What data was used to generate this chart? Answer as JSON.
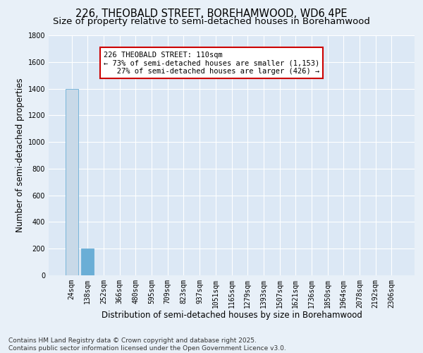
{
  "title_line1": "226, THEOBALD STREET, BOREHAMWOOD, WD6 4PE",
  "title_line2": "Size of property relative to semi-detached houses in Borehamwood",
  "xlabel": "Distribution of semi-detached houses by size in Borehamwood",
  "ylabel": "Number of semi-detached properties",
  "categories": [
    "24sqm",
    "138sqm",
    "252sqm",
    "366sqm",
    "480sqm",
    "595sqm",
    "709sqm",
    "823sqm",
    "937sqm",
    "1051sqm",
    "1165sqm",
    "1279sqm",
    "1393sqm",
    "1507sqm",
    "1621sqm",
    "1736sqm",
    "1850sqm",
    "1964sqm",
    "2078sqm",
    "2192sqm",
    "2306sqm"
  ],
  "values": [
    1400,
    200,
    0,
    0,
    0,
    0,
    0,
    0,
    0,
    0,
    0,
    0,
    0,
    0,
    0,
    0,
    0,
    0,
    0,
    0,
    0
  ],
  "highlight_bar_index": 1,
  "bar_color_normal": "#c8d9e8",
  "bar_color_highlight": "#6aaed6",
  "bar_edge_color": "#6aaed6",
  "ylim": [
    0,
    1800
  ],
  "yticks": [
    0,
    200,
    400,
    600,
    800,
    1000,
    1200,
    1400,
    1600,
    1800
  ],
  "annotation_text": "226 THEOBALD STREET: 110sqm\n← 73% of semi-detached houses are smaller (1,153)\n   27% of semi-detached houses are larger (426) →",
  "annotation_box_facecolor": "#ffffff",
  "annotation_box_edgecolor": "#cc0000",
  "background_color": "#e8f0f8",
  "plot_bg_color": "#dce8f5",
  "grid_color": "#ffffff",
  "footer_text": "Contains HM Land Registry data © Crown copyright and database right 2025.\nContains public sector information licensed under the Open Government Licence v3.0.",
  "title_fontsize": 10.5,
  "subtitle_fontsize": 9.5,
  "axis_label_fontsize": 8.5,
  "tick_fontsize": 7,
  "annotation_fontsize": 7.5,
  "footer_fontsize": 6.5
}
